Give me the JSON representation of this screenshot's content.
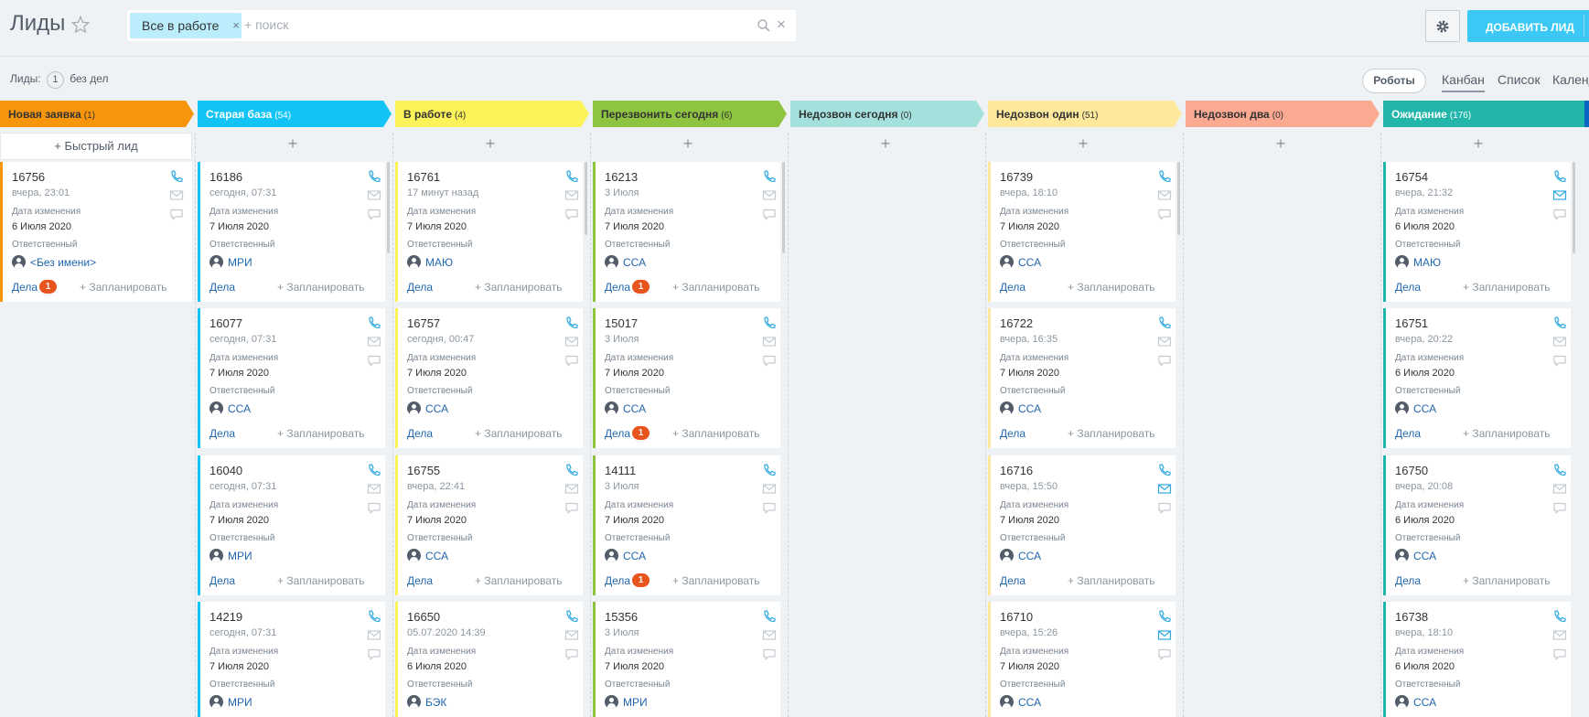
{
  "header": {
    "title": "Лиды",
    "filter_chip": "Все в работе",
    "filter_chip_close": "×",
    "search_placeholder": "+ поиск",
    "search_clear": "×",
    "add_button": "ДОБАВИТЬ ЛИД"
  },
  "counter": {
    "label": "Лиды:",
    "count": "1",
    "suffix": "без дел"
  },
  "views": {
    "robots": "Роботы",
    "kanban": "Канбан",
    "list": "Список",
    "calendar": "Календ"
  },
  "quick_lead": "+ Быстрый лид",
  "plus": "+",
  "card_labels": {
    "modified": "Дата изменения",
    "responsible": "Ответственный",
    "deals": "Дела",
    "plan": "+ Запланировать"
  },
  "colors": {
    "stage_new": "#f7960b",
    "stage_old_base": "#12c4f6",
    "stage_in_work": "#fcf25a",
    "stage_call_today": "#8ec440",
    "stage_missed_today": "#a4e1dc",
    "stage_missed_one": "#fde89b",
    "stage_missed_two": "#fba991",
    "stage_waiting": "#22b5a9",
    "accent": "#3bc8f5",
    "badge": "#e8541e"
  },
  "stages": [
    {
      "name": "Новая заявка",
      "count": "(1)"
    },
    {
      "name": "Старая база",
      "count": "(54)"
    },
    {
      "name": "В работе",
      "count": "(4)"
    },
    {
      "name": "Перезвонить сегодня",
      "count": "(6)"
    },
    {
      "name": "Недозвон сегодня",
      "count": "(0)"
    },
    {
      "name": "Недозвон один",
      "count": "(51)"
    },
    {
      "name": "Недозвон два",
      "count": "(0)"
    },
    {
      "name": "Ожидание",
      "count": "(176)"
    }
  ],
  "cards": {
    "c0_0": {
      "id": "16756",
      "date": "вчера, 23:01",
      "modified": "6 Июля 2020",
      "responsible": "<Без имени>",
      "deals_badge": "1"
    },
    "c1_0": {
      "id": "16186",
      "date": "сегодня, 07:31",
      "modified": "7 Июля 2020",
      "responsible": "МРИ"
    },
    "c1_1": {
      "id": "16077",
      "date": "сегодня, 07:31",
      "modified": "7 Июля 2020",
      "responsible": "ССА"
    },
    "c1_2": {
      "id": "16040",
      "date": "сегодня, 07:31",
      "modified": "7 Июля 2020",
      "responsible": "МРИ"
    },
    "c1_3": {
      "id": "14219",
      "date": "сегодня, 07:31",
      "modified": "7 Июля 2020",
      "responsible": "МРИ"
    },
    "c2_0": {
      "id": "16761",
      "date": "17 минут назад",
      "modified": "7 Июля 2020",
      "responsible": "МАЮ"
    },
    "c2_1": {
      "id": "16757",
      "date": "сегодня, 00:47",
      "modified": "7 Июля 2020",
      "responsible": "ССА"
    },
    "c2_2": {
      "id": "16755",
      "date": "вчера, 22:41",
      "modified": "7 Июля 2020",
      "responsible": "ССА"
    },
    "c2_3": {
      "id": "16650",
      "date": "05.07.2020 14:39",
      "modified": "6 Июля 2020",
      "responsible": "БЭК"
    },
    "c3_0": {
      "id": "16213",
      "date": "3 Июля",
      "modified": "7 Июля 2020",
      "responsible": "ССА",
      "deals_badge": "1"
    },
    "c3_1": {
      "id": "15017",
      "date": "3 Июля",
      "modified": "7 Июля 2020",
      "responsible": "ССА",
      "deals_badge": "1"
    },
    "c3_2": {
      "id": "14111",
      "date": "3 Июля",
      "modified": "7 Июля 2020",
      "responsible": "ССА",
      "deals_badge": "1"
    },
    "c3_3": {
      "id": "15356",
      "date": "3 Июля",
      "modified": "7 Июля 2020",
      "responsible": "МРИ"
    },
    "c5_0": {
      "id": "16739",
      "date": "вчера, 18:10",
      "modified": "7 Июля 2020",
      "responsible": "ССА"
    },
    "c5_1": {
      "id": "16722",
      "date": "вчера, 16:35",
      "modified": "7 Июля 2020",
      "responsible": "ССА"
    },
    "c5_2": {
      "id": "16716",
      "date": "вчера, 15:50",
      "modified": "7 Июля 2020",
      "responsible": "ССА"
    },
    "c5_3": {
      "id": "16710",
      "date": "вчера, 15:26",
      "modified": "7 Июля 2020",
      "responsible": "ССА"
    },
    "c7_0": {
      "id": "16754",
      "date": "вчера, 21:32",
      "modified": "6 Июля 2020",
      "responsible": "МАЮ"
    },
    "c7_1": {
      "id": "16751",
      "date": "вчера, 20:22",
      "modified": "6 Июля 2020",
      "responsible": "ССА"
    },
    "c7_2": {
      "id": "16750",
      "date": "вчера, 20:08",
      "modified": "6 Июля 2020",
      "responsible": "ССА"
    },
    "c7_3": {
      "id": "16738",
      "date": "вчера, 18:10",
      "modified": "6 Июля 2020",
      "responsible": "ССА"
    }
  }
}
